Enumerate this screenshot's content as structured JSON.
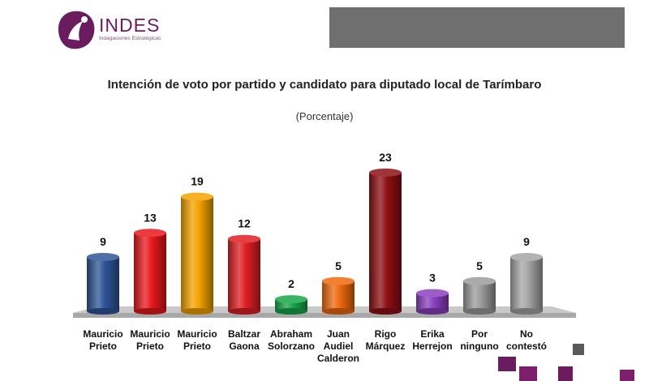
{
  "logo": {
    "name": "INDES",
    "tagline": "Indagaciones Estratégicas"
  },
  "colors": {
    "brand": "#6b1c5e",
    "header_bar": "#6f6f6f"
  },
  "chart_data": {
    "type": "bar",
    "title": "Intención de voto por partido y candidato  para diputado local de Tarímbaro",
    "subtitle": "(Porcentaje)",
    "categories": [
      "Mauricio Prieto",
      "Mauricio Prieto",
      "Mauricio Prieto",
      "Baltzar Gaona",
      "Abraham Solorzano",
      "Juan Audiel Calderon",
      "Rigo Márquez",
      "Erika Herrejon",
      "Por ninguno",
      "No contestó"
    ],
    "category_lines": [
      [
        "Mauricio",
        "Prieto"
      ],
      [
        "Mauricio",
        "Prieto"
      ],
      [
        "Mauricio",
        "Prieto"
      ],
      [
        "Baltzar",
        "Gaona"
      ],
      [
        "Abraham",
        "Solorzano"
      ],
      [
        "Juan",
        "Audiel",
        "Calderon"
      ],
      [
        "Rigo",
        "Márquez"
      ],
      [
        "Erika",
        "Herrejon"
      ],
      [
        "Por",
        "ninguno"
      ],
      [
        "No",
        "contestó"
      ]
    ],
    "values": [
      9,
      13,
      19,
      12,
      2,
      5,
      23,
      3,
      5,
      9
    ],
    "value_labels": [
      "9",
      "13",
      "19",
      "12",
      "2",
      "5",
      "23",
      "3",
      "5",
      "9"
    ],
    "bar_colors": [
      "#2f5597",
      "#e8181c",
      "#f5a300",
      "#e01f23",
      "#17a64a",
      "#ee6a0f",
      "#8e0f14",
      "#8a3fc0",
      "#9b9b9b",
      "#a6a6a6"
    ],
    "ylim": [
      0,
      25
    ],
    "grid": false,
    "legend": "none"
  }
}
